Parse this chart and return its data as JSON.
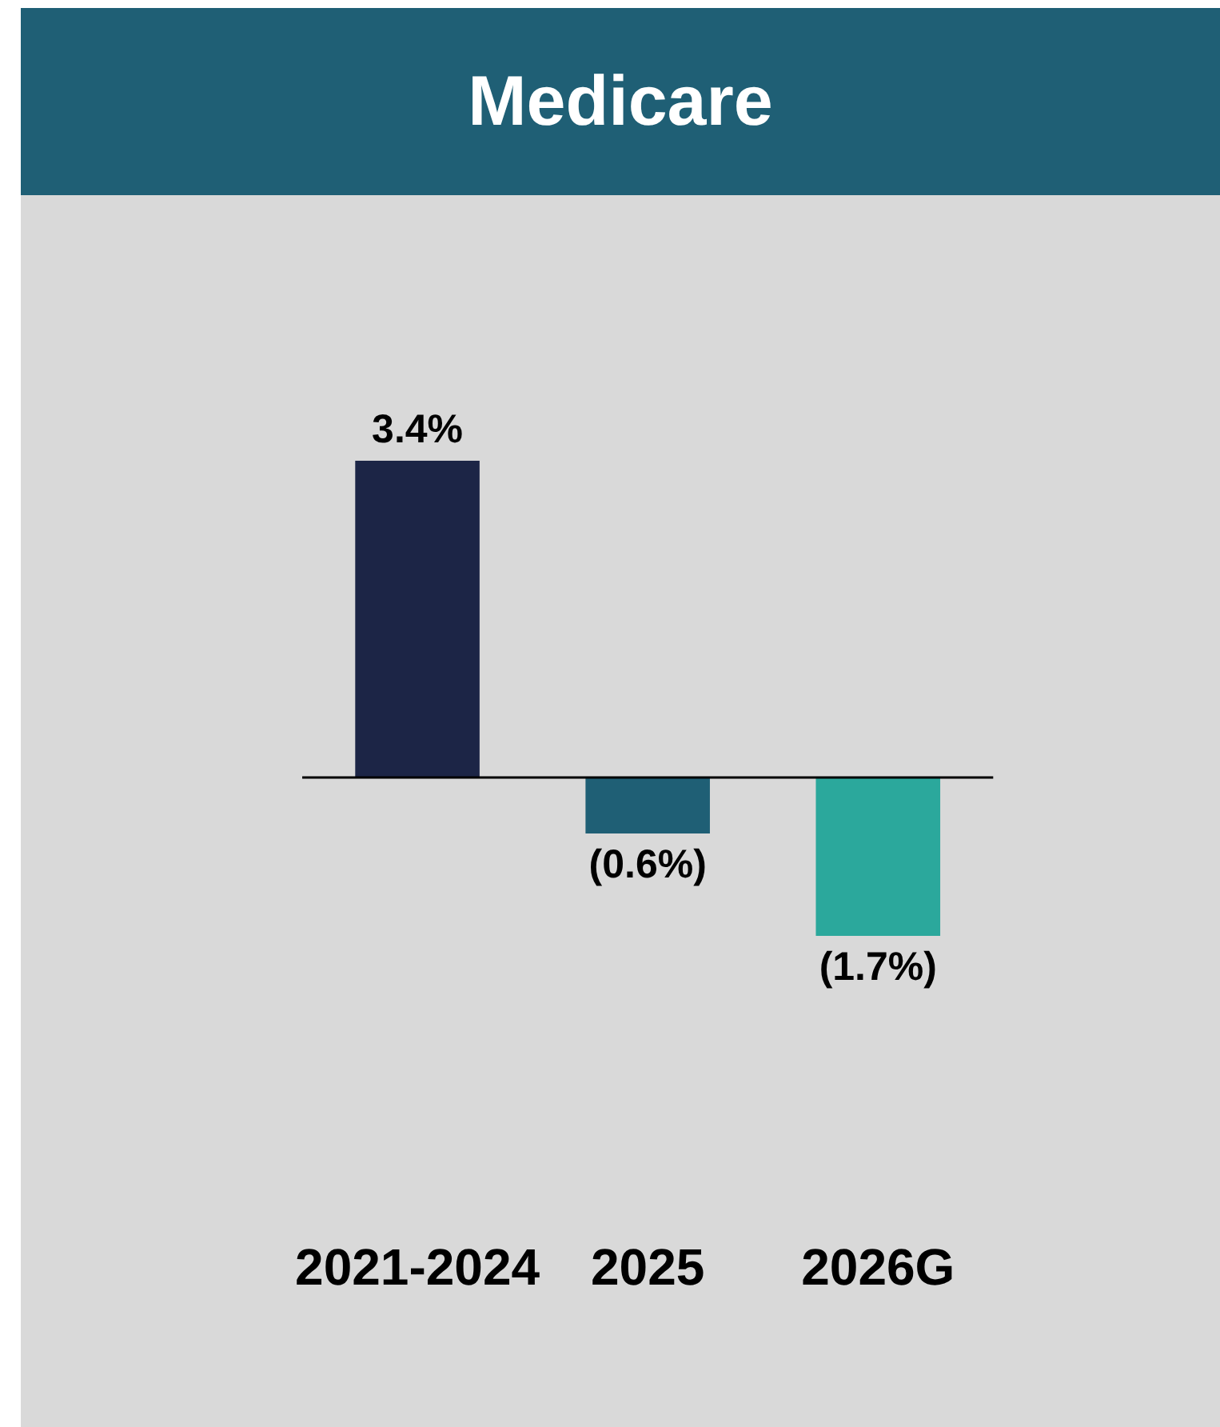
{
  "chart_data": {
    "type": "bar",
    "title": "Medicare",
    "categories": [
      "2021-2024",
      "2025",
      "2026G"
    ],
    "values": [
      3.4,
      -0.6,
      -1.7
    ],
    "colors": [
      "#1c2546",
      "#1f5f75",
      "#2ba89c"
    ],
    "value_labels": [
      "3.4%",
      "(0.6%)",
      "(1.7%)"
    ],
    "tick_labels": "x",
    "grid": false,
    "legend": false
  }
}
